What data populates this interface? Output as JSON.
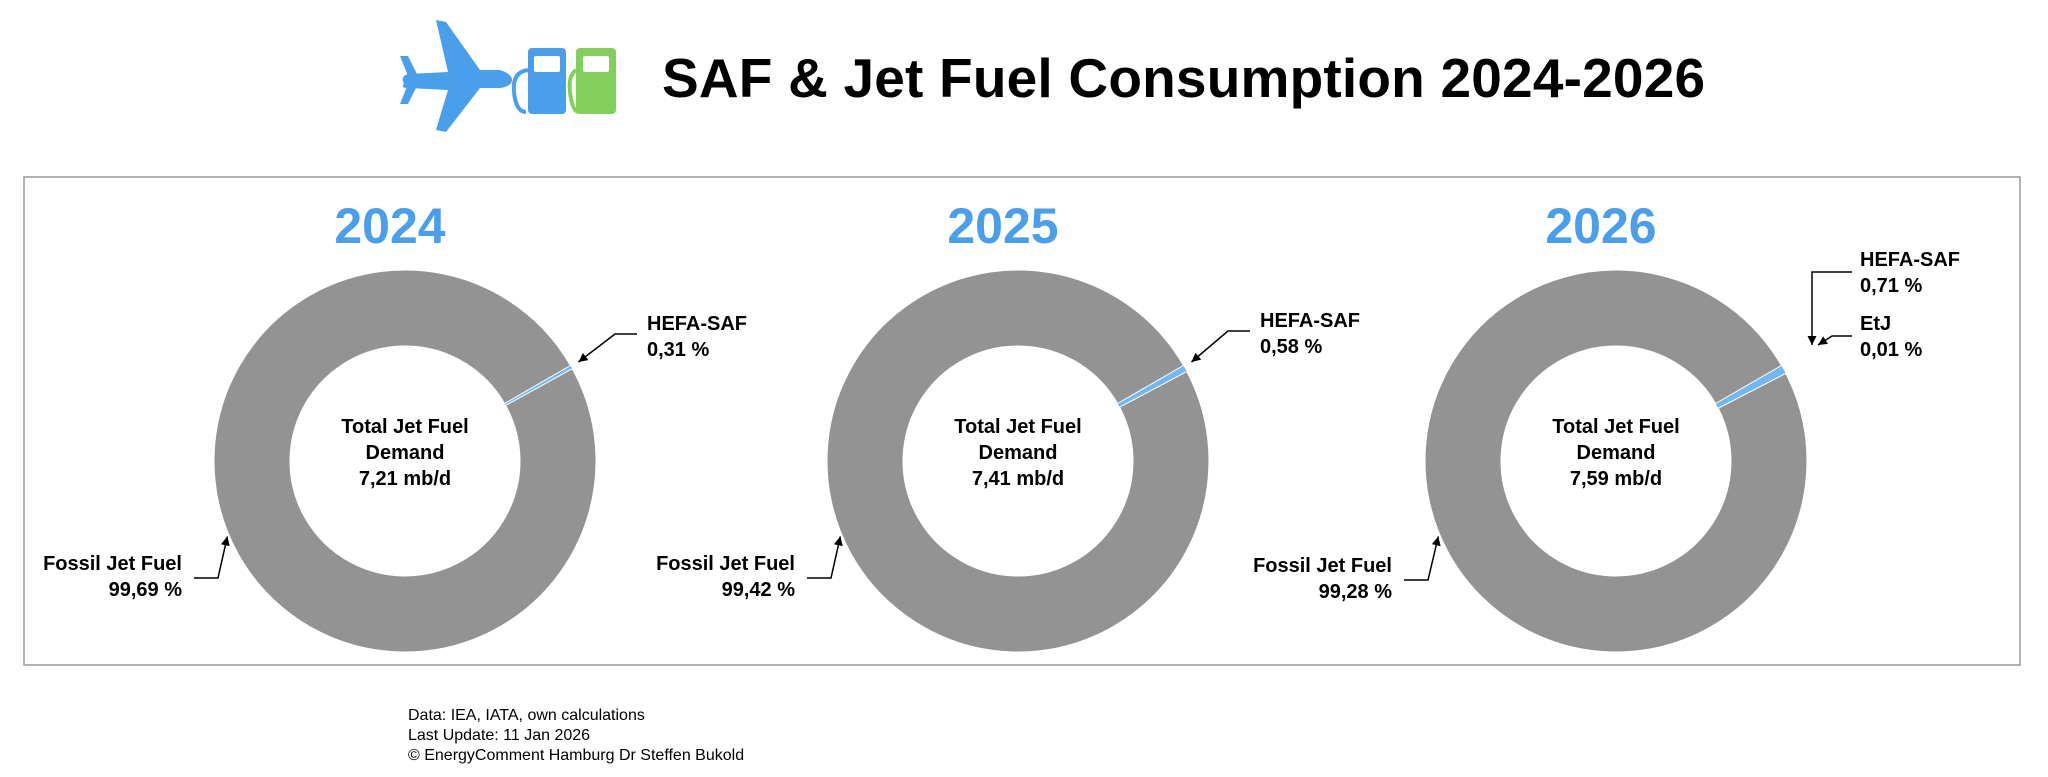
{
  "header": {
    "title": "SAF & Jet Fuel Consumption 2024-2026",
    "icons": [
      "airplane-icon",
      "fuel-pump-icon",
      "fuel-pump-icon"
    ]
  },
  "colors": {
    "fossil": "#939393",
    "saf": "#72b8ef",
    "year_title": "#4a9fea",
    "icon_blue": "#4a9fea",
    "icon_green": "#82cf5b",
    "frame": "#999999"
  },
  "chart_data": [
    {
      "type": "pie",
      "title": "2024",
      "center": [
        "Total Jet Fuel",
        "Demand",
        "7,21 mb/d"
      ],
      "series": [
        {
          "name": "Fossil Jet Fuel",
          "value": 99.69,
          "label": "99,69 %"
        },
        {
          "name": "HEFA-SAF",
          "value": 0.31,
          "label": "0,31 %"
        }
      ]
    },
    {
      "type": "pie",
      "title": "2025",
      "center": [
        "Total Jet Fuel",
        "Demand",
        "7,41 mb/d"
      ],
      "series": [
        {
          "name": "Fossil Jet Fuel",
          "value": 99.42,
          "label": "99,42 %"
        },
        {
          "name": "HEFA-SAF",
          "value": 0.58,
          "label": "0,58 %"
        }
      ]
    },
    {
      "type": "pie",
      "title": "2026",
      "center": [
        "Total Jet Fuel",
        "Demand",
        "7,59 mb/d"
      ],
      "series": [
        {
          "name": "Fossil Jet Fuel",
          "value": 99.28,
          "label": "99,28 %"
        },
        {
          "name": "HEFA-SAF",
          "value": 0.71,
          "label": "0,71 %"
        },
        {
          "name": "EtJ",
          "value": 0.01,
          "label": "0,01 %"
        }
      ]
    }
  ],
  "footer": {
    "source": "Data: IEA, IATA, own calculations",
    "update": "Last Update: 11 Jan 2026",
    "copyright": "© EnergyComment Hamburg Dr Steffen Bukold"
  }
}
